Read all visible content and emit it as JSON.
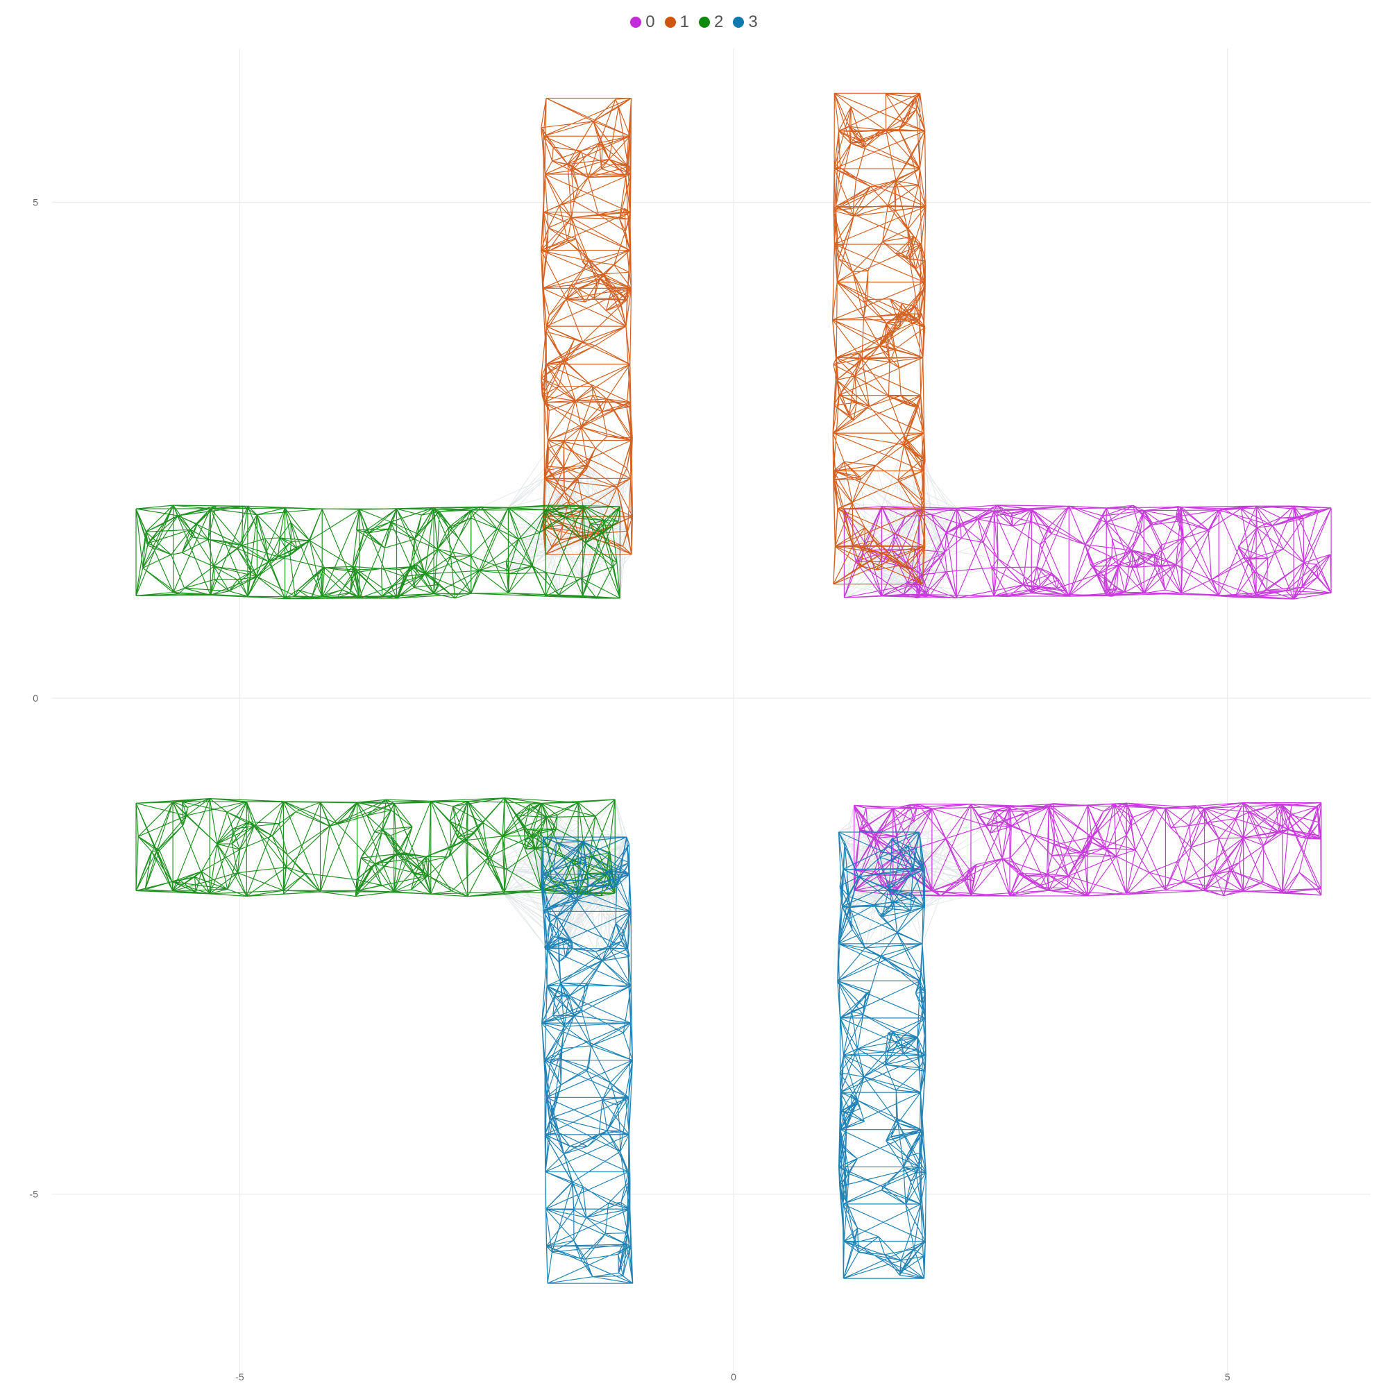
{
  "chart_data": {
    "type": "scatter",
    "title": "",
    "xlabel": "",
    "ylabel": "",
    "xlim": [
      -6.9,
      6.45
    ],
    "ylim": [
      -6.85,
      6.55
    ],
    "grid": true,
    "legend_position": "top-center",
    "x_ticks": [
      {
        "value": -5,
        "label": "-5"
      },
      {
        "value": 0,
        "label": "0"
      },
      {
        "value": 5,
        "label": "5"
      }
    ],
    "y_ticks": [
      {
        "value": 5,
        "label": "5"
      },
      {
        "value": 0,
        "label": "0"
      },
      {
        "value": -5,
        "label": "-5"
      }
    ],
    "series": [
      {
        "name": "0",
        "color": "#c32ad9",
        "bands": [
          {
            "orientation": "horizontal",
            "x": [
              1.12,
              6.05
            ],
            "y": [
              1.0,
              1.95
            ]
          },
          {
            "orientation": "horizontal",
            "x": [
              1.22,
              5.95
            ],
            "y": [
              -2.0,
              -1.05
            ]
          }
        ]
      },
      {
        "name": "1",
        "color": "#d0550f",
        "bands": [
          {
            "orientation": "vertical",
            "x": [
              -1.95,
              -1.02
            ],
            "y": [
              1.45,
              6.05
            ]
          },
          {
            "orientation": "vertical",
            "x": [
              1.0,
              1.95
            ],
            "y": [
              1.15,
              6.1
            ]
          }
        ]
      },
      {
        "name": "2",
        "color": "#0e8a0f",
        "bands": [
          {
            "orientation": "horizontal",
            "x": [
              -6.05,
              -1.15
            ],
            "y": [
              1.0,
              1.95
            ]
          },
          {
            "orientation": "horizontal",
            "x": [
              -6.05,
              -1.2
            ],
            "y": [
              -2.0,
              -1.0
            ]
          }
        ]
      },
      {
        "name": "3",
        "color": "#0f7ab0",
        "bands": [
          {
            "orientation": "vertical",
            "x": [
              -1.95,
              -1.02
            ],
            "y": [
              -5.9,
              -1.4
            ]
          },
          {
            "orientation": "vertical",
            "x": [
              1.05,
              1.95
            ],
            "y": [
              -5.85,
              -1.35
            ]
          }
        ]
      }
    ],
    "connectors_color": "#c9d2d6"
  }
}
